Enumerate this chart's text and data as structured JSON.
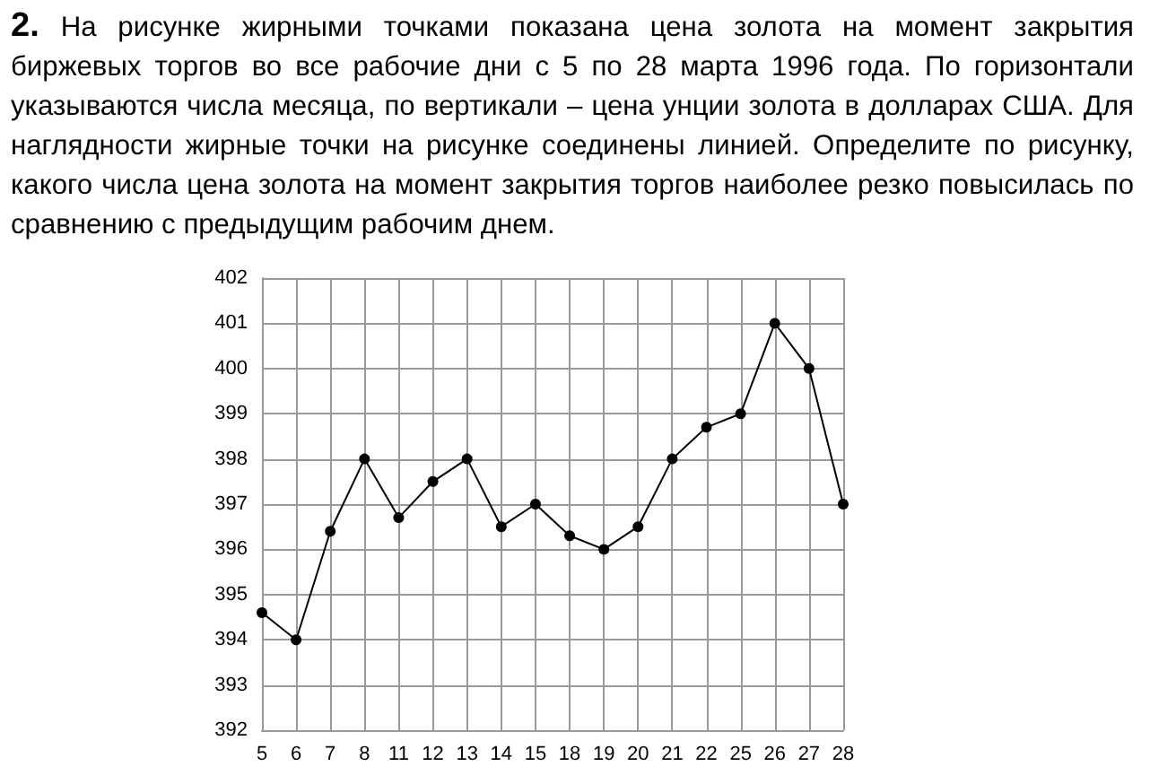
{
  "chart_data": {
    "type": "line",
    "title": "2.",
    "subtitle": "На рисунке жирными точками показана цена золота на момент закрытия биржевых торгов во все рабочие дни с 5 по 28 марта 1996 года. По горизонтали указываются числа месяца, по вертикали – цена унции золота в долларах США. Для наглядности жирные точки на рисунке соединены линией. Определите по рисунку, какого числа цена золота на момент закрытия торгов наиболее резко повысилась по сравнению с предыдущим рабочим днем.",
    "categories": [
      "5",
      "6",
      "7",
      "8",
      "11",
      "12",
      "13",
      "14",
      "15",
      "18",
      "19",
      "20",
      "21",
      "22",
      "25",
      "26",
      "27",
      "28"
    ],
    "series": [
      {
        "color": "#000000",
        "values": [
          394.6,
          394,
          396.4,
          398,
          396.7,
          397.5,
          398,
          396.5,
          397,
          396.3,
          396,
          396.5,
          398,
          398.7,
          399,
          401,
          400,
          397
        ]
      }
    ],
    "ylim": [
      392,
      402
    ],
    "yticks": [
      392,
      393,
      394,
      395,
      396,
      397,
      398,
      399,
      400,
      401,
      402
    ],
    "grid": true,
    "marker": "circle",
    "line_style": "solid"
  }
}
